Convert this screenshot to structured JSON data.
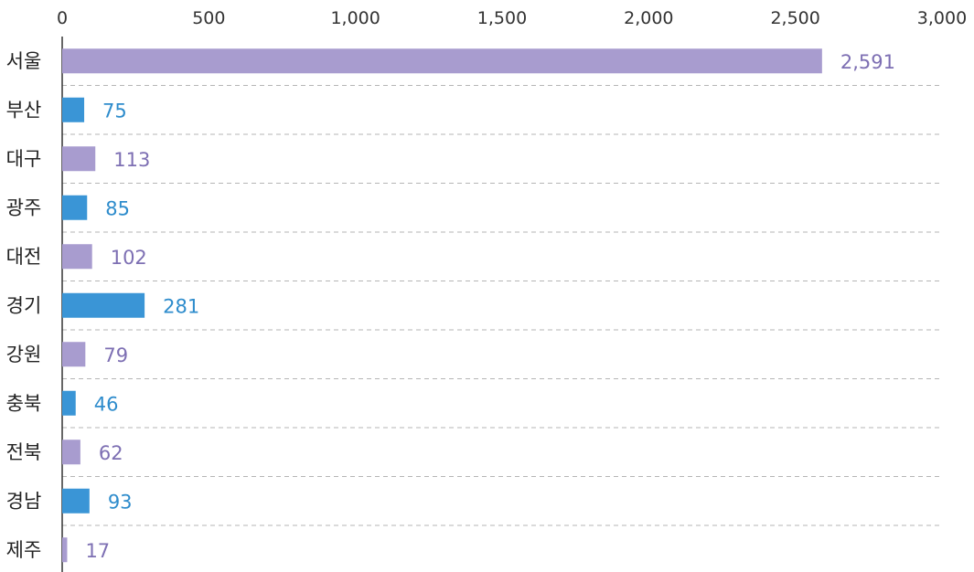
{
  "chart_data": {
    "type": "bar",
    "orientation": "horizontal",
    "categories": [
      "서울",
      "부산",
      "대구",
      "광주",
      "대전",
      "경기",
      "강원",
      "충북",
      "전북",
      "경남",
      "제주"
    ],
    "values": [
      2591,
      75,
      113,
      85,
      102,
      281,
      79,
      46,
      62,
      93,
      17
    ],
    "value_labels": [
      "2,591",
      "75",
      "113",
      "85",
      "102",
      "281",
      "79",
      "46",
      "62",
      "93",
      "17"
    ],
    "xlim": [
      0,
      3000
    ],
    "x_ticks": [
      0,
      500,
      1000,
      1500,
      2000,
      2500,
      3000
    ],
    "x_tick_labels": [
      "0",
      "500",
      "1,000",
      "1,500",
      "2,000",
      "2,500",
      "3,000"
    ],
    "x_axis_position": "top",
    "grid": "dashed horizontal separators",
    "colors": {
      "purple": "#a89ccf",
      "blue": "#3a95d6",
      "purple_label": "#7d6fb3",
      "blue_label": "#2e8ccc",
      "axis": "#333333",
      "grid": "#b5b5b5"
    },
    "bar_colors": [
      "purple",
      "blue",
      "purple",
      "blue",
      "purple",
      "blue",
      "purple",
      "blue",
      "purple",
      "blue",
      "purple"
    ]
  }
}
